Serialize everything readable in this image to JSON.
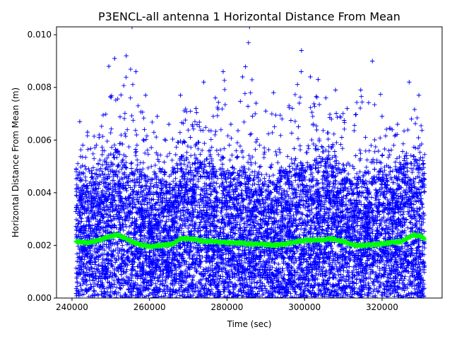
{
  "chart_data": {
    "type": "scatter",
    "title": "P3ENCL-all antenna 1 Horizontal Distance From Mean",
    "xlabel": "Time (sec)",
    "ylabel": "Horizontal Distance From Mean (m)",
    "xlim": [
      236000,
      335500
    ],
    "ylim": [
      0.0,
      0.0103
    ],
    "grid": false,
    "legend": "none",
    "x_ticks": [
      {
        "value": 240000,
        "label": "240000"
      },
      {
        "value": 260000,
        "label": "260000"
      },
      {
        "value": 280000,
        "label": "280000"
      },
      {
        "value": 300000,
        "label": "300000"
      },
      {
        "value": 320000,
        "label": "320000"
      }
    ],
    "y_ticks": [
      {
        "value": 0.0,
        "label": "0.000"
      },
      {
        "value": 0.002,
        "label": "0.002"
      },
      {
        "value": 0.004,
        "label": "0.004"
      },
      {
        "value": 0.006,
        "label": "0.006"
      },
      {
        "value": 0.008,
        "label": "0.008"
      },
      {
        "value": 0.01,
        "label": "0.010"
      }
    ],
    "series": [
      {
        "kind": "scatter",
        "marker": "+",
        "color": "#0000ff",
        "x_range": [
          241000,
          331000
        ],
        "note_envelope_x": [
          241000,
          245000,
          250000,
          252000,
          255000,
          258000,
          262000,
          266000,
          270000,
          275000,
          279000,
          282000,
          285500,
          287000,
          290000,
          295000,
          299000,
          300500,
          303000,
          306000,
          310000,
          315000,
          318000,
          322000,
          326000,
          329000,
          331000
        ],
        "upper_envelope_y": [
          0.0062,
          0.0056,
          0.0079,
          0.009,
          0.0092,
          0.0075,
          0.0065,
          0.0067,
          0.0073,
          0.0068,
          0.0086,
          0.0059,
          0.0103,
          0.0073,
          0.0071,
          0.0069,
          0.0094,
          0.0069,
          0.0083,
          0.0072,
          0.0076,
          0.0079,
          0.009,
          0.0065,
          0.0061,
          0.0081,
          0.0059
        ],
        "sample_values": [
          [
            242000,
            0.0067
          ],
          [
            244000,
            0.0063
          ],
          [
            247000,
            0.0061
          ],
          [
            249500,
            0.0088
          ],
          [
            251000,
            0.0091
          ],
          [
            254000,
            0.0092
          ],
          [
            255500,
            0.0103
          ],
          [
            256500,
            0.0086
          ],
          [
            259000,
            0.0077
          ],
          [
            262000,
            0.0069
          ],
          [
            265000,
            0.0066
          ],
          [
            268000,
            0.0077
          ],
          [
            272000,
            0.0072
          ],
          [
            274000,
            0.0082
          ],
          [
            277000,
            0.0076
          ],
          [
            279000,
            0.0086
          ],
          [
            281000,
            0.0066
          ],
          [
            284000,
            0.0084
          ],
          [
            285800,
            0.0103
          ],
          [
            287500,
            0.0074
          ],
          [
            290000,
            0.0071
          ],
          [
            292000,
            0.0078
          ],
          [
            296000,
            0.0073
          ],
          [
            299200,
            0.0094
          ],
          [
            301500,
            0.0084
          ],
          [
            303500,
            0.0083
          ],
          [
            305500,
            0.0076
          ],
          [
            308000,
            0.0079
          ],
          [
            311000,
            0.0072
          ],
          [
            314500,
            0.0079
          ],
          [
            317500,
            0.009
          ],
          [
            320000,
            0.0069
          ],
          [
            324000,
            0.0066
          ],
          [
            327000,
            0.0082
          ],
          [
            329500,
            0.0077
          ]
        ]
      },
      {
        "kind": "line",
        "marker": "+",
        "color": "#00ff00",
        "x": [
          241000,
          244000,
          247000,
          250000,
          252000,
          254000,
          257000,
          260000,
          263000,
          266000,
          268000,
          271000,
          274000,
          277000,
          280000,
          283000,
          286000,
          289000,
          292000,
          295000,
          298000,
          301000,
          304000,
          307000,
          310000,
          313000,
          316000,
          319000,
          322000,
          325000,
          328000,
          330000,
          331000
        ],
        "y": [
          0.00215,
          0.0021,
          0.0022,
          0.00235,
          0.0024,
          0.00225,
          0.00205,
          0.00195,
          0.002,
          0.00205,
          0.00225,
          0.00225,
          0.00215,
          0.00215,
          0.0021,
          0.0021,
          0.00205,
          0.00205,
          0.002,
          0.00205,
          0.00215,
          0.0022,
          0.0022,
          0.00225,
          0.00215,
          0.002,
          0.002,
          0.00205,
          0.0021,
          0.00215,
          0.0024,
          0.00235,
          0.00225
        ]
      }
    ]
  }
}
